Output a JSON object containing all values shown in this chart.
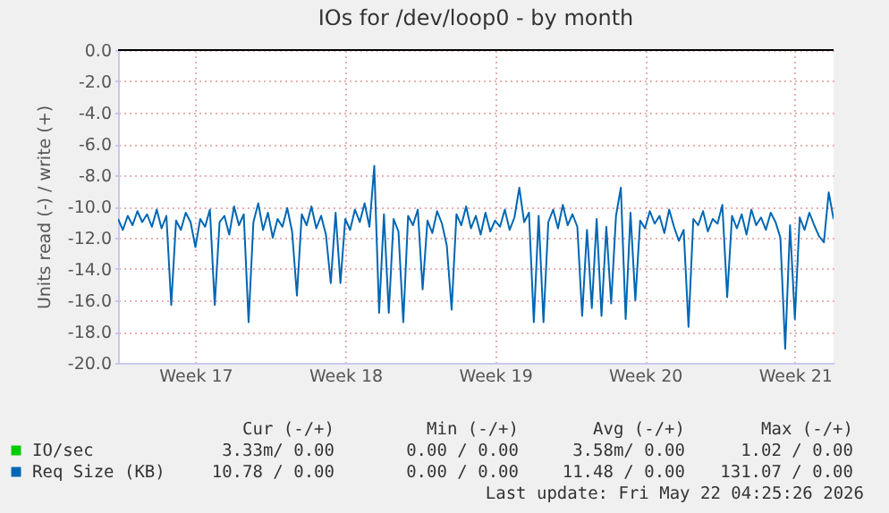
{
  "chart_data": {
    "type": "line",
    "title": "IOs for /dev/loop0 - by month",
    "ylabel": "Units read (-) / write (+)",
    "categories": [
      null,
      null,
      null,
      null,
      null,
      null,
      null,
      null,
      null,
      null,
      null,
      null,
      null,
      null,
      null,
      null,
      "Week 17",
      null,
      null,
      null,
      null,
      null,
      null,
      null,
      null,
      null,
      null,
      null,
      null,
      null,
      null,
      null,
      null,
      null,
      null,
      null,
      null,
      null,
      null,
      null,
      null,
      null,
      null,
      null,
      null,
      null,
      null,
      "Week 18",
      null,
      null,
      null,
      null,
      null,
      null,
      null,
      null,
      null,
      null,
      null,
      null,
      null,
      null,
      null,
      null,
      null,
      null,
      null,
      null,
      null,
      null,
      null,
      null,
      null,
      null,
      null,
      null,
      null,
      null,
      "Week 19",
      null,
      null,
      null,
      null,
      null,
      null,
      null,
      null,
      null,
      null,
      null,
      null,
      null,
      null,
      null,
      null,
      null,
      null,
      null,
      null,
      null,
      null,
      null,
      null,
      null,
      null,
      null,
      null,
      null,
      null,
      "Week 20",
      null,
      null,
      null,
      null,
      null,
      null,
      null,
      null,
      null,
      null,
      null,
      null,
      null,
      null,
      null,
      null,
      null,
      null,
      null,
      null,
      null,
      null,
      null,
      null,
      null,
      null,
      null,
      null,
      null,
      null,
      "Week 21",
      null,
      null,
      null,
      null,
      null,
      null,
      null,
      null
    ],
    "ylim": [
      -20,
      0
    ],
    "yticks": [
      {
        "value": -20,
        "label": "-20.0"
      },
      {
        "value": -18,
        "label": "-18.0"
      },
      {
        "value": -16,
        "label": "-16.0"
      },
      {
        "value": -14,
        "label": "-14.0"
      },
      {
        "value": -12,
        "label": "-12.0"
      },
      {
        "value": -10,
        "label": "-10.0"
      },
      {
        "value": -8,
        "label": "-8.0"
      },
      {
        "value": -6,
        "label": "-6.0"
      },
      {
        "value": -4,
        "label": "-4.0"
      },
      {
        "value": -2,
        "label": "-2.0"
      },
      {
        "value": 0,
        "label": "0.0"
      }
    ],
    "grid": true,
    "legend": "bottom",
    "marker": "none",
    "line_style": "solid",
    "ref_lines": [
      {
        "axis": "y",
        "value": 0,
        "color": "#000000"
      }
    ],
    "series": [
      {
        "name": "IO/sec",
        "color": "#00cc00",
        "values": [
          null,
          null,
          null,
          null,
          null,
          null,
          null,
          null,
          null,
          null,
          null,
          null,
          null,
          null,
          null,
          null,
          null,
          null,
          null,
          null,
          null,
          null,
          null,
          null,
          null,
          null,
          null,
          null,
          null,
          null,
          null,
          null,
          null,
          null,
          null,
          null,
          null,
          null,
          null,
          null,
          null,
          null,
          null,
          null,
          null,
          null,
          null,
          null,
          null,
          null,
          null,
          null,
          null,
          null,
          null,
          null,
          null,
          null,
          null,
          null,
          null,
          null,
          null,
          null,
          null,
          null,
          null,
          null,
          null,
          null,
          null,
          null,
          null,
          null,
          null,
          null,
          null,
          null,
          null,
          null,
          null,
          null,
          null,
          null,
          null,
          null,
          null,
          null,
          null,
          null,
          null,
          null,
          null,
          null,
          null,
          null,
          null,
          null,
          null,
          null,
          null,
          null,
          null,
          null,
          null,
          null,
          null,
          null,
          null,
          null,
          null,
          null,
          null,
          null,
          null,
          null,
          null,
          null,
          null,
          null,
          null,
          null,
          null,
          null,
          null,
          null,
          null,
          null,
          null,
          null,
          null,
          null,
          null,
          null,
          null,
          null,
          null,
          null,
          null,
          null,
          null,
          null,
          null,
          null,
          null,
          null,
          null,
          null,
          null
        ]
      },
      {
        "name": "Req Size (KB)",
        "color": "#0066b3",
        "values": [
          -10.8,
          -11.5,
          -10.6,
          -11.2,
          -10.3,
          -11.0,
          -10.5,
          -11.3,
          -10.2,
          -11.4,
          -10.6,
          -16.3,
          -10.9,
          -11.5,
          -10.4,
          -11.0,
          -12.6,
          -10.8,
          -11.3,
          -10.2,
          -16.3,
          -11.0,
          -10.6,
          -11.8,
          -10.0,
          -11.2,
          -10.5,
          -17.4,
          -11.0,
          -9.8,
          -11.5,
          -10.4,
          -12.0,
          -10.8,
          -11.3,
          -10.1,
          -11.6,
          -15.7,
          -10.5,
          -11.2,
          -10.0,
          -11.4,
          -10.6,
          -11.8,
          -14.9,
          -10.4,
          -14.9,
          -10.8,
          -11.5,
          -10.2,
          -11.0,
          -9.8,
          -11.3,
          -7.4,
          -16.8,
          -10.5,
          -16.8,
          -10.8,
          -11.6,
          -17.4,
          -10.6,
          -11.2,
          -10.2,
          -15.3,
          -10.9,
          -11.7,
          -10.3,
          -11.1,
          -12.5,
          -16.6,
          -10.5,
          -11.2,
          -10.0,
          -11.4,
          -10.6,
          -11.8,
          -10.4,
          -11.6,
          -10.9,
          -11.3,
          -10.2,
          -11.5,
          -10.7,
          -8.8,
          -11.0,
          -10.4,
          -17.4,
          -10.6,
          -17.4,
          -11.0,
          -10.2,
          -11.4,
          -9.9,
          -11.2,
          -10.5,
          -11.3,
          -17.0,
          -11.5,
          -16.5,
          -10.8,
          -17.0,
          -11.3,
          -16.2,
          -10.6,
          -8.8,
          -17.2,
          -10.4,
          -16.0,
          -10.9,
          -11.4,
          -10.3,
          -11.1,
          -10.6,
          -11.7,
          -10.2,
          -11.3,
          -12.2,
          -11.5,
          -17.7,
          -10.8,
          -11.2,
          -10.3,
          -11.6,
          -10.8,
          -11.1,
          -9.9,
          -15.8,
          -10.6,
          -11.4,
          -10.5,
          -11.8,
          -10.2,
          -11.2,
          -10.7,
          -11.5,
          -10.4,
          -11.0,
          -12.0,
          -19.1,
          -11.2,
          -17.2,
          -10.7,
          -11.5,
          -10.4,
          -11.2,
          -11.9,
          -12.3,
          -9.1,
          -10.8
        ]
      }
    ],
    "annotations": [
      "Cur (-/+)",
      "Min (-/+)",
      "Avg (-/+)",
      "Max (-/+)",
      "3.33m/ 0.00",
      "0.00 / 0.00",
      "3.58m/ 0.00",
      "1.02 / 0.00",
      "10.78 / 0.00",
      "0.00 / 0.00",
      "11.48 / 0.00",
      "131.07 / 0.00",
      "Last update: Fri May 22 04:25:26 2026"
    ]
  }
}
